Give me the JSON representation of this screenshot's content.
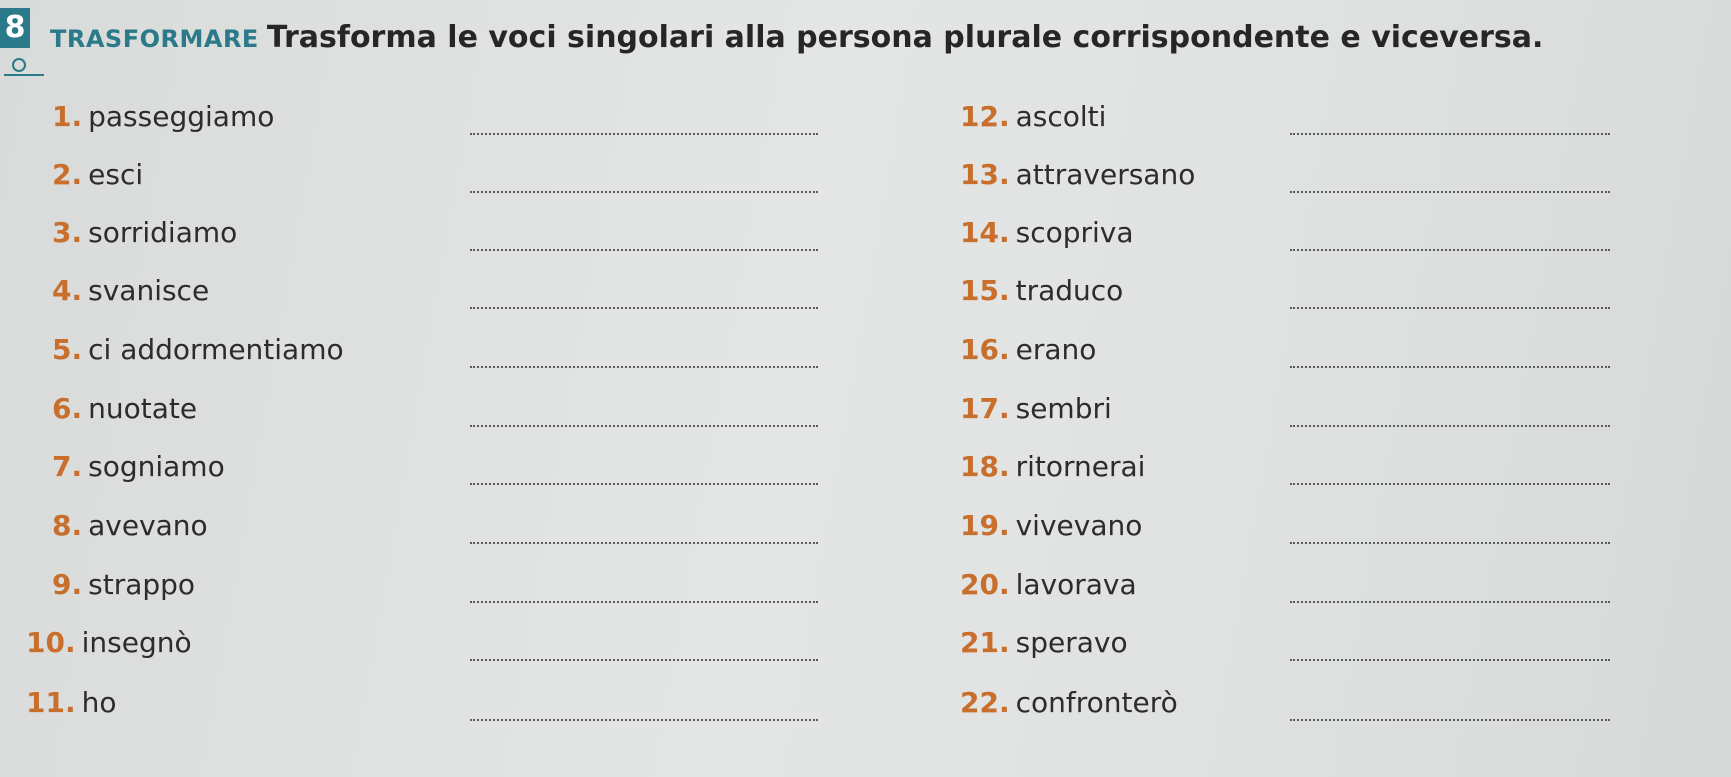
{
  "exercise": {
    "number": "8",
    "keyword": "TRASFORMARE",
    "instruction": "Trasforma le voci singolari alla persona plurale corrispondente e viceversa."
  },
  "left_items": [
    {
      "num": "1.",
      "word": "passeggiamo"
    },
    {
      "num": "2.",
      "word": "esci"
    },
    {
      "num": "3.",
      "word": "sorridiamo"
    },
    {
      "num": "4.",
      "word": "svanisce"
    },
    {
      "num": "5.",
      "word": "ci addormentiamo"
    },
    {
      "num": "6.",
      "word": "nuotate"
    },
    {
      "num": "7.",
      "word": "sogniamo"
    },
    {
      "num": "8.",
      "word": "avevano"
    },
    {
      "num": "9.",
      "word": "strappo"
    },
    {
      "num": "10.",
      "word": "insegnò"
    },
    {
      "num": "11.",
      "word": "ho"
    }
  ],
  "right_items": [
    {
      "num": "12.",
      "word": "ascolti"
    },
    {
      "num": "13.",
      "word": "attraversano"
    },
    {
      "num": "14.",
      "word": "scopriva"
    },
    {
      "num": "15.",
      "word": "traduco"
    },
    {
      "num": "16.",
      "word": "erano"
    },
    {
      "num": "17.",
      "word": "sembri"
    },
    {
      "num": "18.",
      "word": "ritornerai"
    },
    {
      "num": "19.",
      "word": "vivevano"
    },
    {
      "num": "20.",
      "word": "lavorava"
    },
    {
      "num": "21.",
      "word": "speravo"
    },
    {
      "num": "22.",
      "word": "confronterò"
    }
  ]
}
